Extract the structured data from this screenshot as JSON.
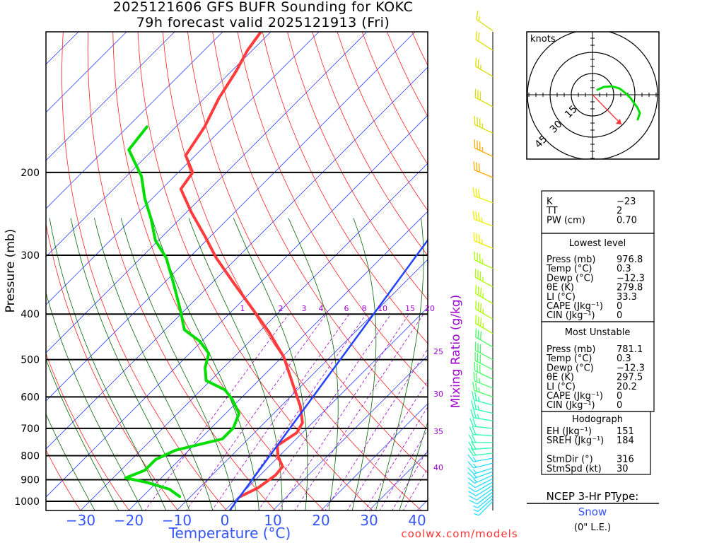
{
  "header": {
    "line1": "2025121606 GFS BUFR Sounding for KOKC",
    "line2": "79h forecast valid 2025121913 (Fri)"
  },
  "footer": {
    "site": "coolwx.com/models"
  },
  "colors": {
    "temperature": "#ff3b3b",
    "dewpoint": "#00dd00",
    "parcel": "#2244ff",
    "isotherm": "#3344ff",
    "dry_adiabat": "#ff2020",
    "moist_adiabat": "#006600",
    "mixing_ratio": "#a000d0"
  },
  "chart_data": {
    "type": "line",
    "title": "2025121606 GFS BUFR Sounding for KOKC — 79h forecast valid 2025121913 (Fri)",
    "xlabel": "Temperature (°C)",
    "ylabel": "Pressure (mb)",
    "y2label": "Mixing Ratio (g/kg)",
    "xlim": [
      -38,
      42
    ],
    "ylim": [
      1046,
      100
    ],
    "x_ticks": [
      "−30",
      "−20",
      "−10",
      "0",
      "10",
      "20",
      "30",
      "40"
    ],
    "x_tick_values": [
      -30,
      -20,
      -10,
      0,
      10,
      20,
      30,
      40
    ],
    "y_ticks": [
      "200",
      "300",
      "400",
      "500",
      "600",
      "700",
      "800",
      "900",
      "1000"
    ],
    "y_tick_values": [
      200,
      300,
      400,
      500,
      600,
      700,
      800,
      900,
      1000
    ],
    "mixing_ratio_labels": [
      "1",
      "2",
      "3",
      "4",
      "6",
      "8",
      "10",
      "15",
      "20",
      "25",
      "30",
      "35",
      "40"
    ],
    "mixing_ratio_values": [
      1,
      2,
      3,
      4,
      6,
      8,
      10,
      15,
      20,
      25,
      30,
      35,
      40
    ],
    "series": [
      {
        "name": "Temperature",
        "pressure": [
          977,
          936,
          880,
          844,
          801,
          761,
          715,
          681,
          629,
          567,
          494,
          437,
          398,
          343,
          304,
          274,
          243,
          217,
          200,
          184,
          160,
          139,
          122,
          110,
          101
        ],
        "values": [
          0.3,
          2.2,
          3.2,
          2.9,
          -0.3,
          -2.6,
          -1.2,
          -2.1,
          -5.9,
          -11.8,
          -19.6,
          -27.9,
          -34.7,
          -45.6,
          -54.3,
          -61,
          -69,
          -76,
          -77,
          -82,
          -84,
          -87,
          -89,
          -91,
          -92
        ]
      },
      {
        "name": "Dewpoint",
        "pressure": [
          977,
          943,
          911,
          892,
          859,
          815,
          779,
          737,
          698,
          651,
          607,
          580,
          554,
          520,
          485,
          457,
          432,
          394,
          343,
          304,
          279,
          251,
          227,
          204,
          179,
          160
        ],
        "values": [
          -12.3,
          -15.9,
          -22.2,
          -27.4,
          -25,
          -25,
          -22.8,
          -15.4,
          -15.4,
          -17.2,
          -21.6,
          -25,
          -30.9,
          -33.8,
          -36,
          -40.4,
          -46,
          -50.7,
          -58.1,
          -64.7,
          -70.6,
          -76,
          -81.6,
          -86.8,
          -95,
          -96
        ]
      },
      {
        "name": "Parcel",
        "pressure": [
          1046,
          540,
          279
        ],
        "values": [
          1,
          -6.5,
          -14
        ]
      }
    ],
    "wind_barbs": [
      [
        1000,
        225,
        5
      ],
      [
        985,
        228,
        6
      ],
      [
        970,
        230,
        7
      ],
      [
        955,
        232,
        8
      ],
      [
        940,
        235,
        9
      ],
      [
        925,
        238,
        10
      ],
      [
        910,
        240,
        11
      ],
      [
        895,
        243,
        12
      ],
      [
        880,
        246,
        13
      ],
      [
        865,
        250,
        14
      ],
      [
        850,
        253,
        15
      ],
      [
        830,
        256,
        16
      ],
      [
        810,
        260,
        17
      ],
      [
        790,
        263,
        18
      ],
      [
        770,
        266,
        19
      ],
      [
        750,
        270,
        20
      ],
      [
        725,
        273,
        21
      ],
      [
        700,
        276,
        22
      ],
      [
        675,
        280,
        23
      ],
      [
        650,
        283,
        24
      ],
      [
        625,
        286,
        25
      ],
      [
        600,
        289,
        26
      ],
      [
        575,
        292,
        27
      ],
      [
        550,
        295,
        28
      ],
      [
        525,
        297,
        29
      ],
      [
        500,
        298,
        30
      ],
      [
        470,
        300,
        32
      ],
      [
        440,
        300,
        33
      ],
      [
        410,
        300,
        35
      ],
      [
        380,
        300,
        35
      ],
      [
        350,
        298,
        35
      ],
      [
        320,
        295,
        35
      ],
      [
        290,
        292,
        35
      ],
      [
        260,
        290,
        35
      ],
      [
        232,
        290,
        30
      ],
      [
        205,
        292,
        30
      ],
      [
        185,
        295,
        35
      ],
      [
        165,
        295,
        35
      ],
      [
        145,
        298,
        30
      ],
      [
        125,
        300,
        25
      ],
      [
        110,
        302,
        20
      ],
      [
        100,
        305,
        15
      ]
    ],
    "hodograph": {
      "units": "knots",
      "ring_labels": [
        "15",
        "30",
        "45"
      ],
      "ring_values": [
        15,
        30,
        45
      ],
      "trace_uv": [
        [
          3.5,
          3.5
        ],
        [
          8,
          5.5
        ],
        [
          13.5,
          6
        ],
        [
          19,
          4.5
        ],
        [
          23,
          1.5
        ],
        [
          27,
          -2.5
        ],
        [
          29.5,
          -6
        ],
        [
          32,
          -9.5
        ],
        [
          33.5,
          -13
        ],
        [
          32,
          -17.5
        ]
      ],
      "storm_motion_uv": [
        20.5,
        -21
      ]
    }
  },
  "hodo_label": "knots",
  "indices": {
    "box1": [
      [
        "K",
        "−23"
      ],
      [
        "TT",
        "2"
      ],
      [
        "PW (cm)",
        "0.70"
      ]
    ],
    "lowest": {
      "title": "Lowest level",
      "rows": [
        [
          "Press (mb)",
          "976.8"
        ],
        [
          "Temp (°C)",
          "0.3"
        ],
        [
          "Dewp (°C)",
          "−12.3"
        ],
        [
          "θE (K)",
          "279.8"
        ],
        [
          "LI (°C)",
          "33.3"
        ],
        [
          "CAPE (Jkg⁻¹)",
          "0"
        ],
        [
          "CIN (Jkg⁻¹)",
          "0"
        ]
      ]
    },
    "unstable": {
      "title": "Most Unstable",
      "rows": [
        [
          "Press (mb)",
          "781.1"
        ],
        [
          "Temp (°C)",
          "0.3"
        ],
        [
          "Dewp (°C)",
          "−12.3"
        ],
        [
          "θE (K)",
          "297.5"
        ],
        [
          "LI (°C)",
          "20.2"
        ],
        [
          "CAPE (Jkg⁻¹)",
          "0"
        ],
        [
          "CIN (Jkg⁻¹)",
          "0"
        ]
      ]
    },
    "hodo": {
      "title": "Hodograph",
      "rows": [
        [
          "EH (Jkg⁻¹)",
          "151"
        ],
        [
          "SREH (Jkg⁻¹)",
          "184"
        ],
        [
          "",
          ""
        ],
        [
          "StmDir (°)",
          "316"
        ],
        [
          "StmSpd (kt)",
          "30"
        ]
      ]
    }
  },
  "ptype": {
    "title": "NCEP 3-Hr PType:",
    "value": "Snow",
    "accum": "(0\" L.E.)"
  }
}
